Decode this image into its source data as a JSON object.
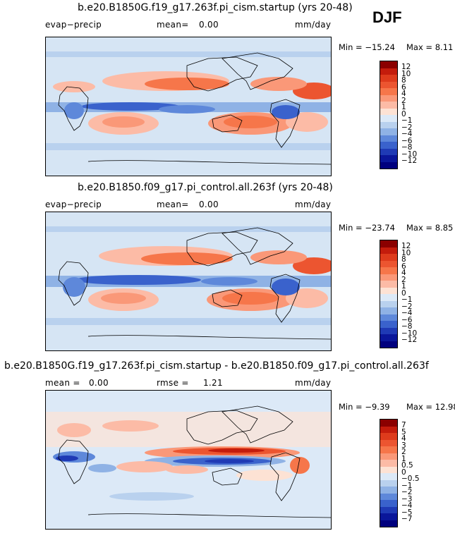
{
  "season": "DJF",
  "panels": [
    {
      "title": "b.e20.B1850G.f19_g17.263f.pi_cism.startup (yrs 20-48)",
      "variable": "evap−precip",
      "left_stat": "mean=",
      "left_val": "0.00",
      "units": "mm/day",
      "min_text": "Min = −15.24",
      "max_text": "Max =   8.11",
      "colorbar_levels": [
        "12",
        "10",
        "8",
        "6",
        "4",
        "2",
        "1",
        "0",
        "−1",
        "−2",
        "−4",
        "−6",
        "−8",
        "−10",
        "−12"
      ],
      "colors": [
        "#8b0000",
        "#c41c0c",
        "#de3b1c",
        "#ec5530",
        "#f6764a",
        "#fa9878",
        "#fcbba6",
        "#fde2d4",
        "#dce9f7",
        "#b9d1ee",
        "#8fb2e5",
        "#5e88da",
        "#3a62cc",
        "#1f3ab5",
        "#0a169a",
        "#00007e"
      ]
    },
    {
      "title": "b.e20.B1850.f09_g17.pi_control.all.263f (yrs 20-48)",
      "variable": "evap−precip",
      "left_stat": "mean=",
      "left_val": "0.00",
      "units": "mm/day",
      "min_text": "Min = −23.74",
      "max_text": "Max =   8.85",
      "colorbar_levels": [
        "12",
        "10",
        "8",
        "6",
        "4",
        "2",
        "1",
        "0",
        "−1",
        "−2",
        "−4",
        "−6",
        "−8",
        "−10",
        "−12"
      ],
      "colors": [
        "#8b0000",
        "#c41c0c",
        "#de3b1c",
        "#ec5530",
        "#f6764a",
        "#fa9878",
        "#fcbba6",
        "#fde2d4",
        "#dce9f7",
        "#b9d1ee",
        "#8fb2e5",
        "#5e88da",
        "#3a62cc",
        "#1f3ab5",
        "#0a169a",
        "#00007e"
      ]
    },
    {
      "title": "b.e20.B1850G.f19_g17.263f.pi_cism.startup - b.e20.B1850.f09_g17.pi_control.all.263f",
      "variable": "mean =",
      "left_val": "0.00",
      "rmse_label": "rmse =",
      "rmse_val": "1.21",
      "units": "mm/day",
      "min_text": "Min =  −9.39",
      "max_text": "Max =  12.98",
      "colorbar_levels": [
        "7",
        "5",
        "4",
        "3",
        "2",
        "1",
        "0.5",
        "0",
        "−0.5",
        "−1",
        "−2",
        "−3",
        "−4",
        "−5",
        "−7"
      ],
      "colors": [
        "#8b0000",
        "#c41c0c",
        "#de3b1c",
        "#ec5530",
        "#f6764a",
        "#fa9878",
        "#fcbba6",
        "#fde2d4",
        "#dce9f7",
        "#b9d1ee",
        "#8fb2e5",
        "#5e88da",
        "#3a62cc",
        "#1f3ab5",
        "#0a169a",
        "#00007e"
      ]
    }
  ]
}
